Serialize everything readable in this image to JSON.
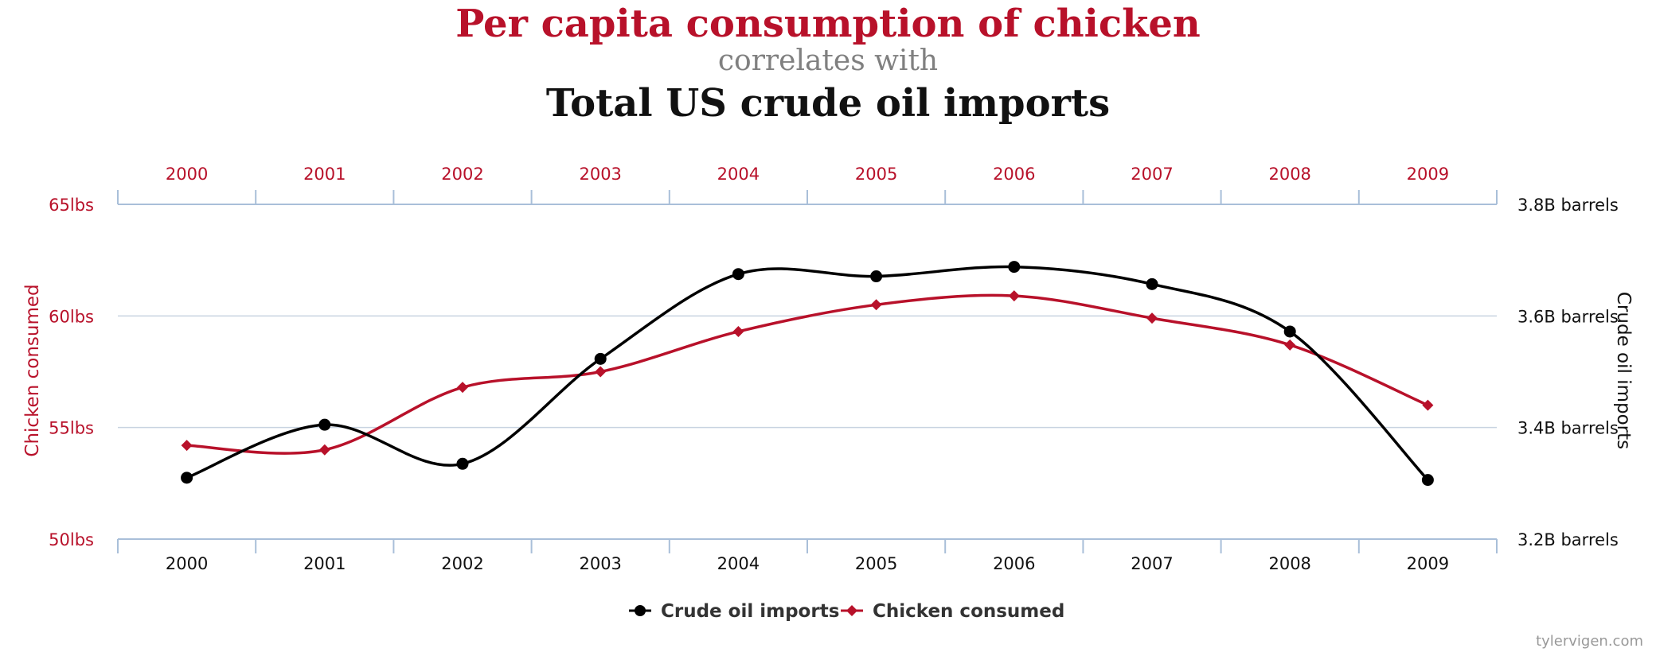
{
  "chart_data": {
    "type": "line",
    "title": "Per capita consumption of chicken",
    "subtitle": "correlates with",
    "title_second": "Total US crude oil imports",
    "categories": [
      "2000",
      "2001",
      "2002",
      "2003",
      "2004",
      "2005",
      "2006",
      "2007",
      "2008",
      "2009"
    ],
    "y_left": {
      "label": "Chicken consumed",
      "range": [
        50,
        65
      ],
      "ticks": [
        65,
        60,
        55,
        50
      ],
      "tick_labels": [
        "65lbs",
        "60lbs",
        "55lbs",
        "50lbs"
      ]
    },
    "y_right": {
      "label": "Crude oil imports",
      "range": [
        3.2,
        3.8
      ],
      "ticks": [
        3.8,
        3.6,
        3.4,
        3.2
      ],
      "tick_labels": [
        "3.8B barrels",
        "3.6B barrels",
        "3.4B barrels",
        "3.2B barrels"
      ]
    },
    "grid": true,
    "legend_position": "bottom-center",
    "series": [
      {
        "name": "Crude oil imports",
        "axis": "right",
        "color": "#000000",
        "marker": "circle",
        "values": [
          3.31,
          3.405,
          3.335,
          3.523,
          3.675,
          3.671,
          3.688,
          3.657,
          3.572,
          3.306
        ]
      },
      {
        "name": "Chicken consumed",
        "axis": "left",
        "color": "#b8112a",
        "marker": "diamond",
        "values": [
          54.2,
          54.0,
          56.8,
          57.5,
          59.3,
          60.5,
          60.9,
          59.9,
          58.7,
          56.0
        ]
      }
    ]
  },
  "source": "tylervigen.com"
}
